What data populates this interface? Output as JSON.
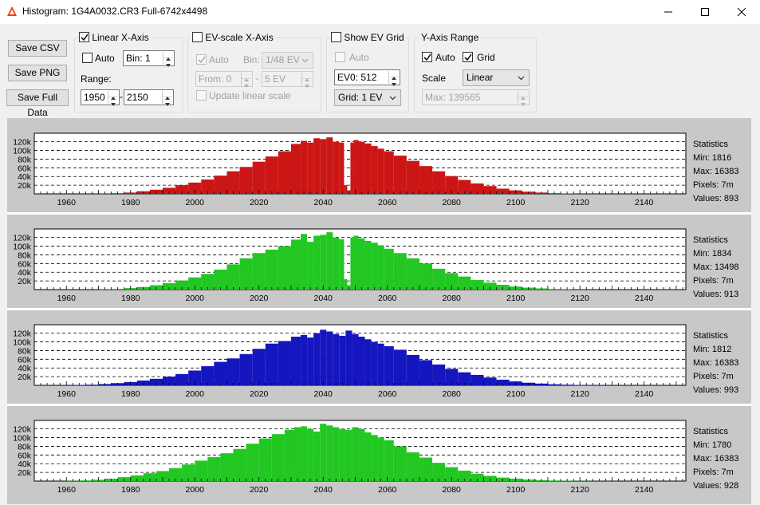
{
  "window": {
    "title": "Histogram: 1G4A0032.CR3 Full-6742x4498",
    "icon": "app-logo-icon",
    "minimize_icon": "minimize-icon",
    "maximize_icon": "maximize-icon",
    "close_icon": "close-icon"
  },
  "buttons": {
    "save_csv": "Save CSV",
    "save_png": "Save PNG",
    "save_full_data": "Save Full Data"
  },
  "linear_x_axis": {
    "title": "Linear X-Axis",
    "checked": true,
    "auto_label": "Auto",
    "auto_checked": false,
    "bin": "Bin: 1",
    "range_label": "Range:",
    "range_from": "1950",
    "range_to": "2150",
    "range_separator": "-"
  },
  "ev_scale_x_axis": {
    "title": "EV-scale X-Axis",
    "checked": false,
    "auto_label": "Auto",
    "auto_checked": true,
    "bin_label": "Bin:",
    "bin_value": "1/48 EV",
    "from": "From: 0",
    "separator": "-",
    "to": "5 EV",
    "update_label": "Update linear scale",
    "update_checked": false
  },
  "show_ev_grid": {
    "title": "Show EV Grid",
    "checked": false,
    "auto_label": "Auto",
    "auto_checked": false,
    "ev0": "EV0: 512",
    "grid": "Grid: 1 EV"
  },
  "y_axis_range": {
    "title": "Y-Axis Range",
    "auto_label": "Auto",
    "auto_checked": true,
    "grid_label": "Grid",
    "grid_checked": true,
    "scale_label": "Scale",
    "scale_value": "Linear",
    "max": "Max: 139565"
  },
  "axis": {
    "x_ticks": [
      "1960",
      "1980",
      "2000",
      "2020",
      "2040",
      "2060",
      "2080",
      "2100",
      "2120",
      "2140"
    ],
    "y_ticks": [
      "20k",
      "40k",
      "60k",
      "80k",
      "100k",
      "120k"
    ]
  },
  "chart_data": [
    {
      "type": "bar",
      "channel": "red",
      "color": "#cc1616",
      "xlim": [
        1950,
        2153
      ],
      "ylim": [
        0,
        139565
      ],
      "grid": true,
      "x_ticks": [
        1960,
        1980,
        2000,
        2020,
        2040,
        2060,
        2080,
        2100,
        2120,
        2140
      ],
      "y_ticks": [
        20000,
        40000,
        60000,
        80000,
        100000,
        120000
      ],
      "x": [
        1972,
        1976,
        1980,
        1984,
        1988,
        1992,
        1996,
        2000,
        2004,
        2008,
        2012,
        2016,
        2020,
        2024,
        2028,
        2032,
        2034,
        2036,
        2038,
        2040,
        2042,
        2044,
        2046,
        2047,
        2048,
        2049,
        2050,
        2052,
        2054,
        2056,
        2058,
        2060,
        2064,
        2068,
        2072,
        2076,
        2080,
        2084,
        2088,
        2092,
        2096,
        2100,
        2104,
        2108,
        2112,
        2116,
        2120,
        2123
      ],
      "values": [
        500,
        1500,
        3000,
        6000,
        9500,
        14000,
        20000,
        26000,
        33000,
        42000,
        52000,
        62000,
        74000,
        86000,
        98000,
        115000,
        122000,
        118000,
        128000,
        126000,
        130000,
        120000,
        118000,
        20000,
        8000,
        118000,
        124000,
        120000,
        116000,
        110000,
        104000,
        98000,
        88000,
        76000,
        64000,
        52000,
        41000,
        32000,
        24000,
        18000,
        12000,
        8000,
        5000,
        3000,
        1500,
        800,
        300,
        100
      ],
      "statistics": {
        "label": "Statistics",
        "min": "Min: 1816",
        "max": "Max: 16383",
        "pixels": "Pixels: 7m",
        "values": "Values: 893"
      }
    },
    {
      "type": "bar",
      "channel": "green",
      "color": "#22c722",
      "xlim": [
        1950,
        2153
      ],
      "ylim": [
        0,
        139565
      ],
      "grid": true,
      "x_ticks": [
        1960,
        1980,
        2000,
        2020,
        2040,
        2060,
        2080,
        2100,
        2120,
        2140
      ],
      "y_ticks": [
        20000,
        40000,
        60000,
        80000,
        100000,
        120000
      ],
      "x": [
        1972,
        1976,
        1980,
        1984,
        1988,
        1992,
        1996,
        2000,
        2004,
        2008,
        2012,
        2016,
        2020,
        2024,
        2028,
        2032,
        2034,
        2036,
        2038,
        2040,
        2042,
        2044,
        2046,
        2047,
        2048,
        2049,
        2050,
        2052,
        2054,
        2056,
        2058,
        2060,
        2064,
        2068,
        2072,
        2076,
        2080,
        2084,
        2088,
        2092,
        2096,
        2100,
        2104,
        2108,
        2112,
        2116,
        2120,
        2123
      ],
      "values": [
        500,
        1500,
        3500,
        6000,
        10000,
        15000,
        21000,
        28000,
        36000,
        46000,
        58000,
        72000,
        84000,
        92000,
        100000,
        115000,
        128000,
        110000,
        124000,
        126000,
        132000,
        120000,
        116000,
        24000,
        10000,
        120000,
        124000,
        118000,
        112000,
        108000,
        102000,
        94000,
        84000,
        72000,
        60000,
        48000,
        38000,
        30000,
        22000,
        16000,
        11000,
        7000,
        4500,
        2800,
        1500,
        700,
        300,
        100
      ],
      "statistics": {
        "label": "Statistics",
        "min": "Min: 1834",
        "max": "Max: 13498",
        "pixels": "Pixels: 7m",
        "values": "Values: 913"
      }
    },
    {
      "type": "bar",
      "channel": "blue",
      "color": "#1616c0",
      "xlim": [
        1950,
        2153
      ],
      "ylim": [
        0,
        139565
      ],
      "grid": true,
      "x_ticks": [
        1960,
        1980,
        2000,
        2020,
        2040,
        2060,
        2080,
        2100,
        2120,
        2140
      ],
      "y_ticks": [
        20000,
        40000,
        60000,
        80000,
        100000,
        120000
      ],
      "x": [
        1960,
        1964,
        1968,
        1972,
        1976,
        1980,
        1984,
        1988,
        1992,
        1996,
        2000,
        2004,
        2008,
        2012,
        2016,
        2020,
        2024,
        2028,
        2032,
        2034,
        2036,
        2038,
        2040,
        2042,
        2044,
        2046,
        2048,
        2050,
        2052,
        2054,
        2056,
        2058,
        2060,
        2064,
        2068,
        2072,
        2076,
        2080,
        2084,
        2088,
        2092,
        2096,
        2100,
        2104,
        2108,
        2112,
        2116,
        2120,
        2124,
        2128,
        2132,
        2135
      ],
      "values": [
        300,
        800,
        1500,
        3000,
        5000,
        7500,
        11000,
        15000,
        20000,
        26000,
        34000,
        44000,
        54000,
        62000,
        72000,
        84000,
        96000,
        102000,
        112000,
        116000,
        110000,
        120000,
        128000,
        124000,
        118000,
        114000,
        126000,
        118000,
        112000,
        106000,
        100000,
        96000,
        90000,
        82000,
        70000,
        58000,
        48000,
        38000,
        30000,
        24000,
        18000,
        13000,
        9000,
        6000,
        4000,
        2500,
        1500,
        900,
        500,
        300,
        150,
        80
      ],
      "statistics": {
        "label": "Statistics",
        "min": "Min: 1812",
        "max": "Max: 16383",
        "pixels": "Pixels: 7m",
        "values": "Values: 993"
      }
    },
    {
      "type": "bar",
      "channel": "green2",
      "color": "#22c722",
      "xlim": [
        1950,
        2153
      ],
      "ylim": [
        0,
        139565
      ],
      "grid": true,
      "x_ticks": [
        1960,
        1980,
        2000,
        2020,
        2040,
        2060,
        2080,
        2100,
        2120,
        2140
      ],
      "y_ticks": [
        20000,
        40000,
        60000,
        80000,
        100000,
        120000
      ],
      "x": [
        1962,
        1966,
        1970,
        1974,
        1978,
        1982,
        1986,
        1990,
        1994,
        1998,
        2002,
        2006,
        2010,
        2014,
        2018,
        2022,
        2026,
        2030,
        2032,
        2034,
        2036,
        2038,
        2040,
        2042,
        2044,
        2046,
        2048,
        2050,
        2052,
        2054,
        2056,
        2058,
        2060,
        2064,
        2068,
        2072,
        2076,
        2080,
        2084,
        2088,
        2092,
        2096,
        2100,
        2104,
        2108,
        2112,
        2116,
        2120,
        2124,
        2128,
        2132
      ],
      "values": [
        500,
        1500,
        3000,
        5500,
        9000,
        13000,
        18000,
        23000,
        30000,
        38000,
        47000,
        55000,
        64000,
        74000,
        86000,
        98000,
        108000,
        118000,
        124000,
        126000,
        120000,
        114000,
        132000,
        128000,
        124000,
        120000,
        118000,
        124000,
        120000,
        112000,
        106000,
        100000,
        94000,
        80000,
        66000,
        54000,
        42000,
        32000,
        24000,
        17000,
        12000,
        8000,
        5500,
        3500,
        2200,
        1300,
        700,
        400,
        200,
        100,
        50
      ],
      "statistics": {
        "label": "Statistics",
        "min": "Min: 1780",
        "max": "Max: 16383",
        "pixels": "Pixels: 7m",
        "values": "Values: 928"
      }
    }
  ]
}
